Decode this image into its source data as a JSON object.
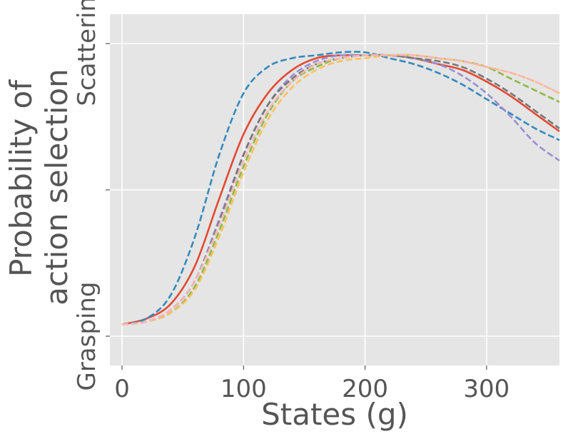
{
  "chart_data": {
    "type": "line",
    "title": "",
    "xlabel": "States (g)",
    "ylabel_lines": [
      "Probability of",
      "action selection"
    ],
    "xlim": [
      -10,
      360
    ],
    "ylim": [
      -0.1,
      1.1
    ],
    "x_ticks": [
      0,
      100,
      200,
      300
    ],
    "x_tick_labels": [
      "0",
      "100",
      "200",
      "300"
    ],
    "y_ticks": [
      0,
      0.5,
      1
    ],
    "y_tick_labels": [
      "Grasping",
      "",
      "Scattering"
    ],
    "grid": true,
    "background": "#e5e5e5",
    "x": [
      0,
      20,
      40,
      60,
      80,
      100,
      120,
      140,
      160,
      180,
      200,
      220,
      240,
      260,
      280,
      300,
      320,
      340,
      360
    ],
    "series": [
      {
        "style": "solid",
        "color": "#e24a33",
        "values": [
          0.04,
          0.06,
          0.11,
          0.24,
          0.47,
          0.69,
          0.83,
          0.91,
          0.95,
          0.96,
          0.96,
          0.96,
          0.95,
          0.93,
          0.91,
          0.87,
          0.82,
          0.76,
          0.7
        ]
      },
      {
        "style": "dashed",
        "color": "#348abd",
        "values": [
          0.04,
          0.06,
          0.14,
          0.34,
          0.62,
          0.83,
          0.92,
          0.95,
          0.96,
          0.97,
          0.97,
          0.95,
          0.93,
          0.9,
          0.86,
          0.81,
          0.76,
          0.71,
          0.67
        ]
      },
      {
        "style": "dashed",
        "color": "#988ed5",
        "values": [
          0.04,
          0.05,
          0.09,
          0.19,
          0.4,
          0.62,
          0.79,
          0.89,
          0.94,
          0.96,
          0.96,
          0.96,
          0.95,
          0.93,
          0.89,
          0.83,
          0.75,
          0.66,
          0.6
        ]
      },
      {
        "style": "dashed",
        "color": "#777777",
        "values": [
          0.04,
          0.05,
          0.09,
          0.19,
          0.39,
          0.62,
          0.79,
          0.88,
          0.93,
          0.95,
          0.96,
          0.96,
          0.95,
          0.94,
          0.92,
          0.88,
          0.83,
          0.77,
          0.71
        ]
      },
      {
        "style": "dashed",
        "color": "#8eba42",
        "values": [
          0.04,
          0.05,
          0.08,
          0.17,
          0.36,
          0.58,
          0.76,
          0.87,
          0.92,
          0.95,
          0.96,
          0.96,
          0.96,
          0.95,
          0.94,
          0.92,
          0.88,
          0.84,
          0.8
        ]
      },
      {
        "style": "dashed",
        "color": "#fbc15e",
        "values": [
          0.04,
          0.05,
          0.08,
          0.16,
          0.34,
          0.56,
          0.74,
          0.85,
          0.91,
          0.94,
          0.95,
          0.96,
          0.96,
          0.95,
          0.94,
          0.92,
          0.9,
          0.87,
          0.83
        ]
      },
      {
        "style": "dashed",
        "color": "#ffb5b8",
        "values": [
          0.04,
          0.05,
          0.09,
          0.19,
          0.38,
          0.6,
          0.77,
          0.87,
          0.93,
          0.95,
          0.96,
          0.96,
          0.96,
          0.95,
          0.94,
          0.92,
          0.9,
          0.87,
          0.83
        ]
      }
    ]
  }
}
